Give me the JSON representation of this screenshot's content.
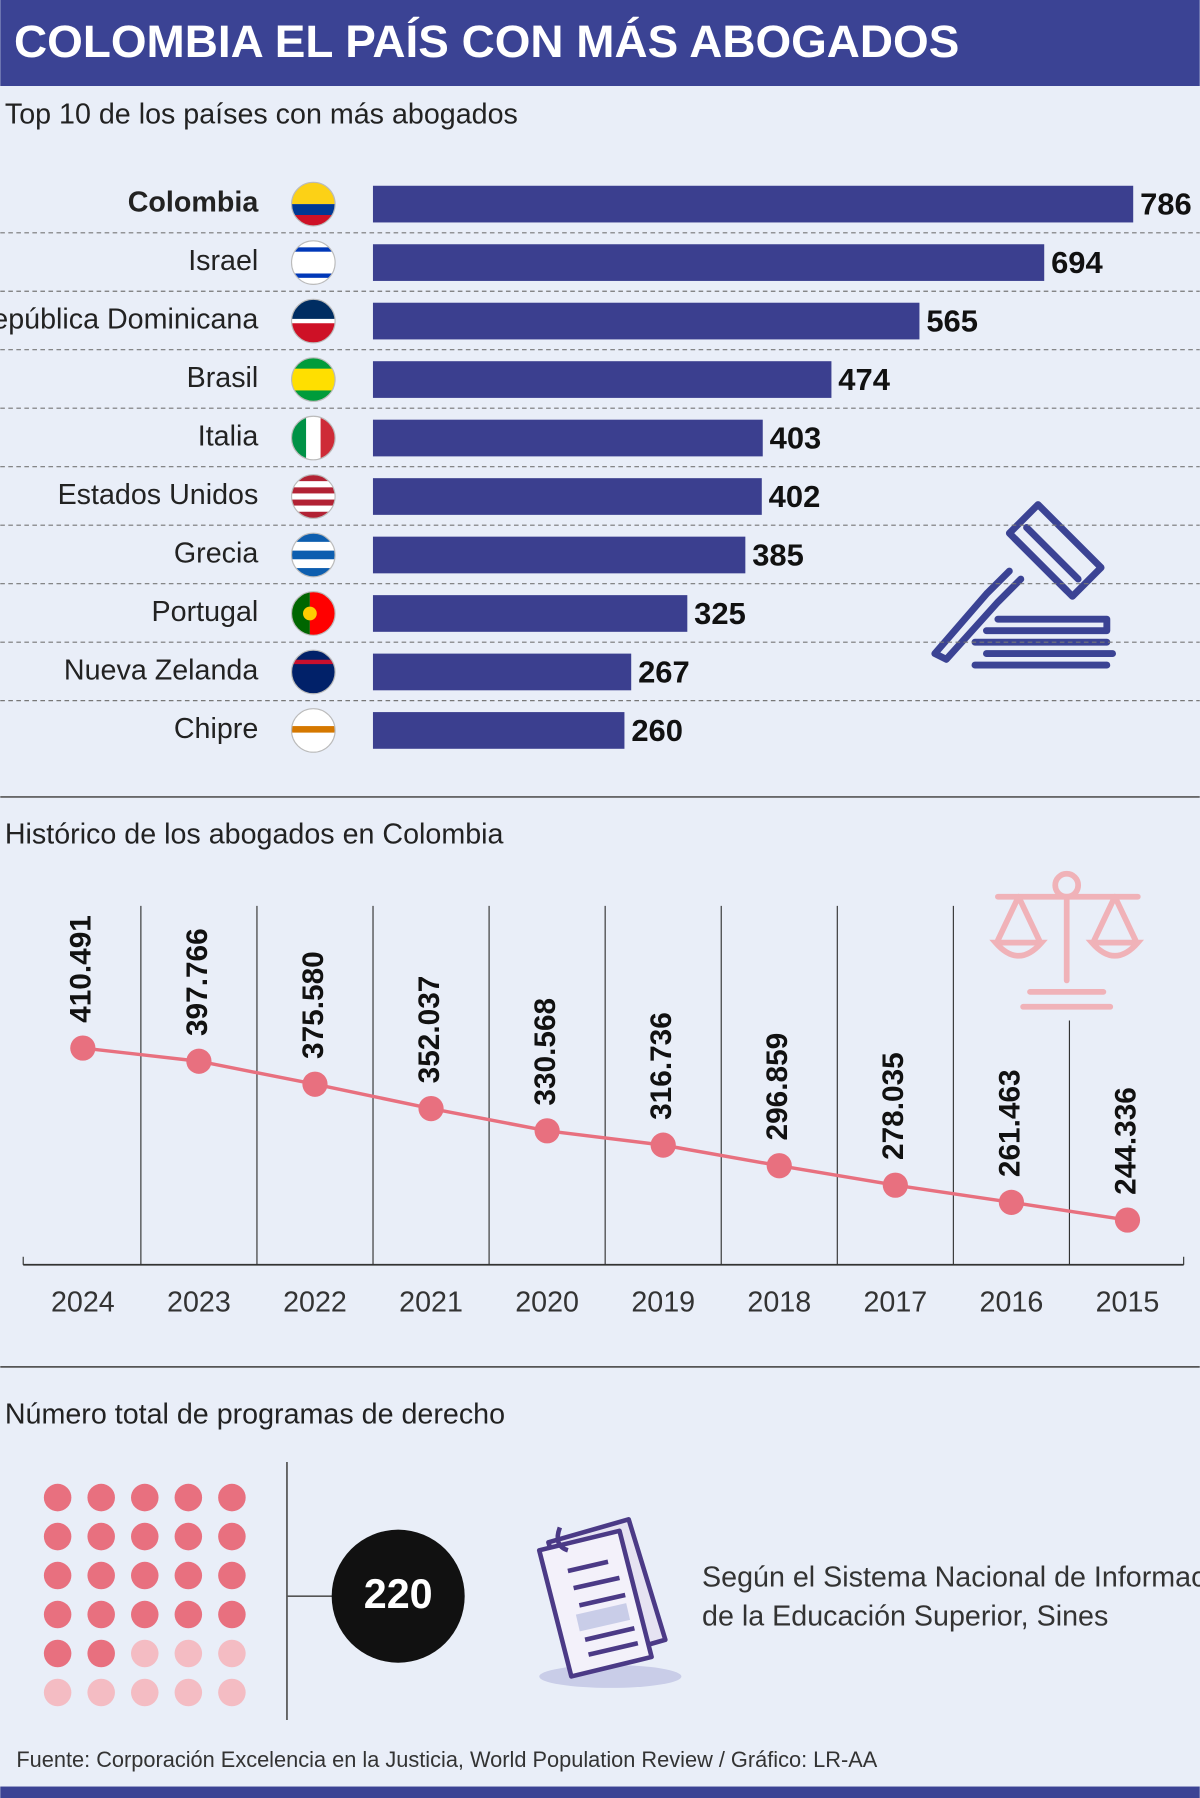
{
  "title": "COLOMBIA EL PAÍS CON MÁS ABOGADOS",
  "chart_data": [
    {
      "type": "bar",
      "title": "Top 10 de los países con más abogados",
      "categories": [
        "Colombia",
        "Israel",
        "República Dominicana",
        "Brasil",
        "Italia",
        "Estados Unidos",
        "Grecia",
        "Portugal",
        "Nueva Zelanda",
        "Chipre"
      ],
      "values": [
        786,
        694,
        565,
        474,
        403,
        402,
        385,
        325,
        267,
        260
      ],
      "color": "#3b3f8f"
    },
    {
      "type": "line",
      "title": "Histórico de los abogados en Colombia",
      "categories": [
        "2024",
        "2023",
        "2022",
        "2021",
        "2020",
        "2019",
        "2018",
        "2017",
        "2016",
        "2015"
      ],
      "values": [
        410491,
        397766,
        375580,
        352037,
        330568,
        316736,
        296859,
        278035,
        261463,
        244336
      ],
      "value_labels": [
        "410.491",
        "397.766",
        "375.580",
        "352.037",
        "330.568",
        "316.736",
        "296.859",
        "278.035",
        "261.463",
        "244.336"
      ],
      "color": "#e8707f"
    }
  ],
  "programs": {
    "title": "Número total de programas de derecho",
    "value": 220,
    "note": [
      "Según el Sistema Nacional de Información",
      "de la Educación Superior, Sines"
    ]
  },
  "source": "Fuente: Corporación Excelencia en la Justicia, World Population Review / Gráfico: LR-AA"
}
